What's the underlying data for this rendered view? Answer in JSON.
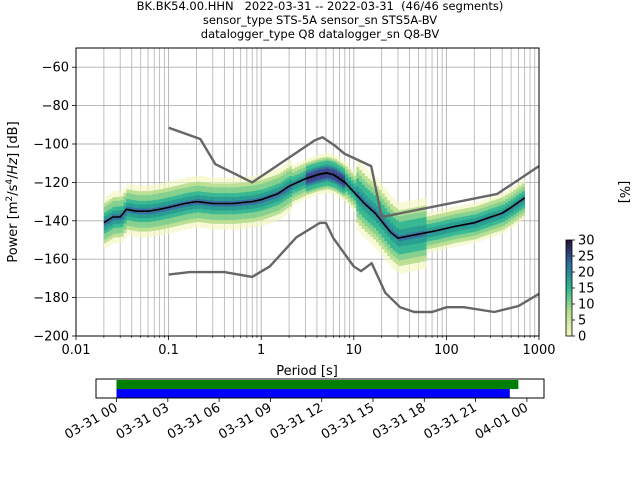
{
  "header": {
    "line1": "BK.BK54.00.HHN   2022-03-31 -- 2022-03-31  (46/46 segments)",
    "line2": "sensor_type STS-5A sensor_sn STS5A-BV",
    "line3": "datalogger_type Q8 datalogger_sn Q8-BV"
  },
  "chart_data": [
    {
      "type": "heatmap",
      "title": "",
      "xlabel": "Period [s]",
      "ylabel": "Power [m^2/s^4/Hz] [dB]",
      "xscale": "log",
      "xlim": [
        0.01,
        1000
      ],
      "ylim": [
        -200,
        -50
      ],
      "xticks": [
        "0.01",
        "0.1",
        "1",
        "10",
        "100",
        "1000"
      ],
      "yticks": [
        -60,
        -80,
        -100,
        -120,
        -140,
        -160,
        -180,
        -200
      ],
      "grid": true,
      "colorbar": {
        "label": "[%]",
        "range": [
          0,
          30
        ],
        "ticks": [
          0,
          5,
          10,
          15,
          20,
          25,
          30
        ]
      },
      "series": [
        {
          "name": "",
          "role": "mean PSD",
          "x": [
            0.02,
            0.025,
            0.03,
            0.035,
            0.045,
            0.06,
            0.08,
            0.1,
            0.15,
            0.2,
            0.3,
            0.5,
            0.8,
            1.0,
            1.5,
            2.0,
            3.0,
            4.0,
            5.0,
            6.0,
            8.0,
            10.0,
            13.0,
            17.0,
            25.0,
            30.0,
            50.0,
            80.0,
            120.0,
            200.0,
            300.0,
            400.0,
            500.0,
            700.0
          ],
          "y": [
            -141,
            -138,
            -138,
            -134,
            -135,
            -135,
            -134,
            -133,
            -131,
            -130,
            -131,
            -131,
            -130,
            -129,
            -126,
            -122,
            -118,
            -116,
            -115,
            -116,
            -120,
            -125,
            -131,
            -136,
            -146,
            -149,
            -147,
            -145,
            -143,
            -141,
            -138,
            -136,
            -133,
            -128
          ]
        },
        {
          "name": "",
          "role": "noise model (upper)",
          "x": [
            0.1,
            0.22,
            0.32,
            0.8,
            3.8,
            4.6,
            6.3,
            7.9,
            15.4,
            20.0,
            354.8,
            1000.0
          ],
          "y": [
            -91.5,
            -97.4,
            -110.5,
            -120.0,
            -98.0,
            -96.5,
            -101.0,
            -105.0,
            -111.5,
            -138.0,
            -126.0,
            -111.5
          ]
        },
        {
          "name": "",
          "role": "noise model (lower)",
          "x": [
            0.1,
            0.17,
            0.4,
            0.8,
            1.24,
            2.4,
            4.3,
            5.0,
            6.0,
            10.0,
            12.0,
            15.6,
            21.9,
            31.6,
            45.0,
            70.0,
            101.0,
            154.0,
            328.0,
            600.0,
            1000.0
          ],
          "y": [
            -168.0,
            -166.7,
            -166.7,
            -169.2,
            -163.7,
            -148.6,
            -141.1,
            -141.1,
            -149.0,
            -163.8,
            -166.2,
            -162.1,
            -177.5,
            -185.0,
            -187.5,
            -187.5,
            -185.0,
            -185.0,
            -187.5,
            -184.4,
            -178.0
          ]
        }
      ],
      "density": {
        "x_range": [
          0.02,
          700
        ],
        "center": "mean PSD",
        "spread_db_approx": 5
      }
    },
    {
      "type": "timeline",
      "title": "",
      "xlabel": "",
      "xticks": [
        "03-31 00",
        "03-31 03",
        "03-31 06",
        "03-31 09",
        "03-31 12",
        "03-31 15",
        "03-31 18",
        "03-31 21",
        "04-01 00"
      ],
      "xlim_hours": [
        -1.2,
        25.0
      ],
      "bars": [
        {
          "color": "#008000",
          "start_hour": 0.0,
          "end_hour": 23.5
        },
        {
          "color": "#0000ff",
          "start_hour": 0.0,
          "end_hour": 23.0
        }
      ]
    }
  ]
}
